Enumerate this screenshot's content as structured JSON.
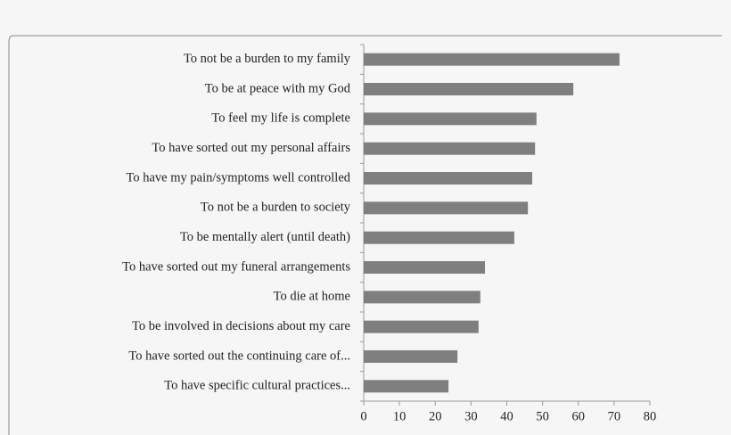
{
  "chart_data": {
    "type": "bar",
    "orientation": "horizontal",
    "color": "#7f7f7f",
    "categories": [
      "To not be a burden to my family",
      "To be at peace with my God",
      "To feel my life is complete",
      "To have sorted out my personal affairs",
      "To have my pain/symptoms well controlled",
      "To not be a burden to society",
      "To be mentally alert (until death)",
      "To have sorted out my funeral arrangements",
      "To die at home",
      "To be involved in decisions about my care",
      "To have sorted out the continuing care of...",
      "To have specific cultural practices..."
    ],
    "values": [
      71.5,
      58.6,
      48.3,
      47.9,
      47.1,
      45.9,
      42.1,
      33.9,
      32.6,
      32.1,
      26.2,
      23.7
    ],
    "xlim": [
      0,
      80
    ],
    "xticks": [
      0,
      10,
      20,
      30,
      40,
      50,
      60,
      70,
      80
    ]
  }
}
